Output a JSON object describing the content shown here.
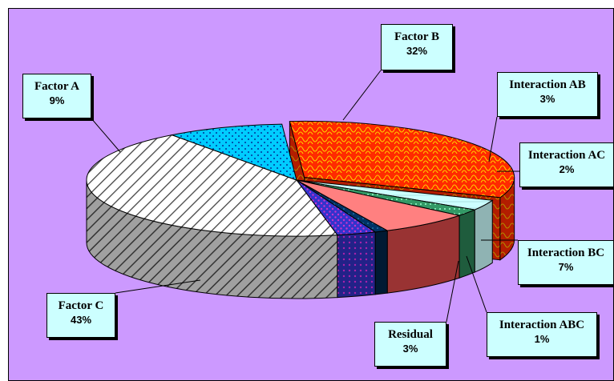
{
  "chart_data": {
    "type": "pie",
    "style": "3d-exploded",
    "title": "",
    "slices": [
      {
        "label": "Factor  B",
        "percent_label": "32%",
        "value": 32,
        "color": "#ff3300"
      },
      {
        "label": "Interaction AB",
        "percent_label": "3%",
        "value": 3,
        "color": "#ccffff"
      },
      {
        "label": "Interaction AC",
        "percent_label": "2%",
        "value": 2,
        "color": "#339966"
      },
      {
        "label": "Interaction BC",
        "percent_label": "7%",
        "value": 7,
        "color": "#ff8080"
      },
      {
        "label": "Interaction ABC",
        "percent_label": "1%",
        "value": 1,
        "color": "#003366"
      },
      {
        "label": "Residual",
        "percent_label": "3%",
        "value": 3,
        "color": "#3333cc"
      },
      {
        "label": "Factor  C",
        "percent_label": "43%",
        "value": 43,
        "color": "#ffffff"
      },
      {
        "label": "Factor  A",
        "percent_label": "9%",
        "value": 9,
        "color": "#00ccff"
      }
    ],
    "plot_background": "#cc99ff",
    "label_background": "#ccffff",
    "legend": "none"
  }
}
